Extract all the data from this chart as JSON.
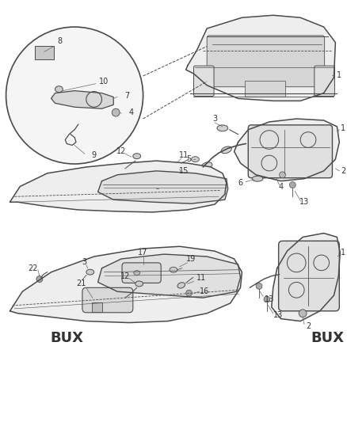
{
  "bg_color": "#ffffff",
  "line_color": "#4a4a4a",
  "text_color": "#333333",
  "fig_width": 4.38,
  "fig_height": 5.33,
  "dpi": 100
}
